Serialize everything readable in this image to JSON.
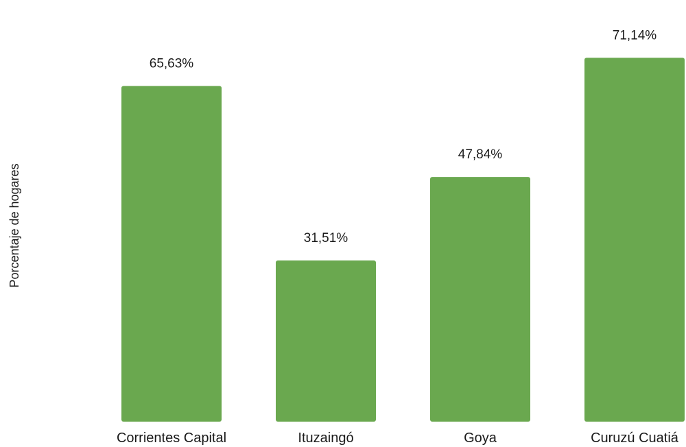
{
  "chart_data": {
    "type": "bar",
    "categories": [
      "Corrientes Capital",
      "Ituzaingó",
      "Goya",
      "Curuzú Cuatiá"
    ],
    "values": [
      65.63,
      31.51,
      47.84,
      71.14
    ],
    "value_labels": [
      "65,63%",
      "31,51%",
      "47,84%",
      "71,14%"
    ],
    "ylabel": "Porcentaje de hogares",
    "ylim": [
      0,
      80
    ],
    "grid": false,
    "legend": "none",
    "bar_color": "#6aa84f"
  }
}
